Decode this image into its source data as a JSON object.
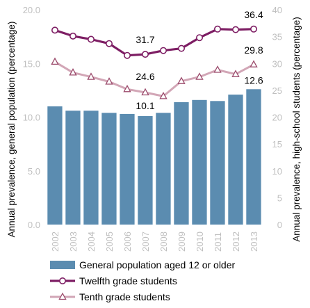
{
  "chart_data": {
    "type": "bar",
    "x": [
      "2002",
      "2003",
      "2004",
      "2005",
      "2006",
      "2007",
      "2008",
      "2009",
      "2010",
      "2011",
      "2012",
      "2013"
    ],
    "y_left": {
      "label": "Annual prevalence, general population (percentage)",
      "range": [
        0,
        20
      ],
      "ticks": [
        "0.0",
        "5.0",
        "10.0",
        "15.0",
        "20.0"
      ]
    },
    "y_right": {
      "label": "Annual prevalence, high-school students (percentage)",
      "range": [
        0,
        40
      ],
      "ticks": [
        "0",
        "5",
        "10",
        "15",
        "20",
        "25",
        "30",
        "35",
        "40"
      ]
    },
    "series": [
      {
        "name": "General population aged 12 or older",
        "type": "bar",
        "axis": "left",
        "color": "#5b8cb0",
        "values": [
          11.0,
          10.6,
          10.6,
          10.4,
          10.3,
          10.1,
          10.4,
          11.4,
          11.6,
          11.5,
          12.1,
          12.6
        ]
      },
      {
        "name": "Twelfth grade students",
        "type": "line",
        "axis": "right",
        "color": "#7d1d63",
        "marker": "circle",
        "values": [
          36.2,
          35.1,
          34.5,
          33.7,
          31.5,
          31.7,
          32.4,
          32.8,
          34.8,
          36.4,
          36.3,
          36.4
        ]
      },
      {
        "name": "Tenth grade students",
        "type": "line",
        "axis": "right",
        "color": "#d2a6b6",
        "marker": "triangle",
        "values": [
          30.3,
          28.3,
          27.5,
          26.6,
          25.2,
          24.6,
          23.9,
          26.7,
          27.5,
          28.8,
          28.0,
          29.8
        ]
      }
    ],
    "annotations": [
      {
        "text": "36.4",
        "series": 1,
        "index": 11
      },
      {
        "text": "31.7",
        "series": 1,
        "index": 5
      },
      {
        "text": "29.8",
        "series": 2,
        "index": 11
      },
      {
        "text": "24.6",
        "series": 2,
        "index": 5
      },
      {
        "text": "12.6",
        "series": 0,
        "index": 11
      },
      {
        "text": "10.1",
        "series": 0,
        "index": 5
      }
    ],
    "legend": "bottom",
    "grid": false
  }
}
